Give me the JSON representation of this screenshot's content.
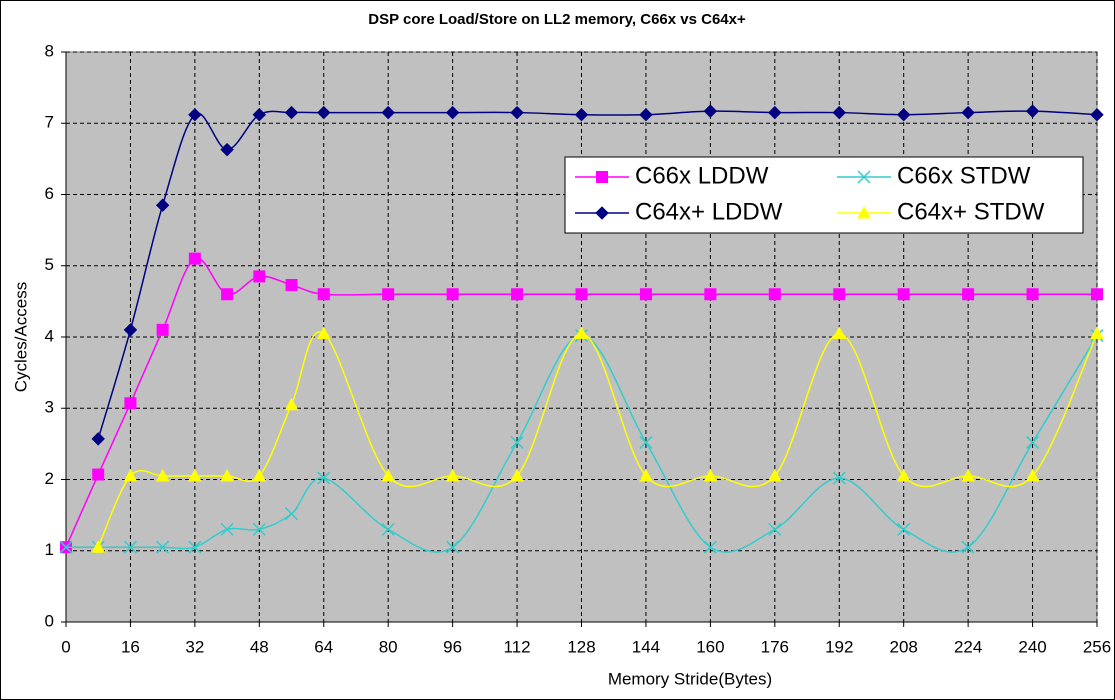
{
  "chart_data": {
    "type": "line",
    "title": "DSP core Load/Store on LL2 memory, C66x vs C64x+",
    "xlabel": "Memory Stride(Bytes)",
    "ylabel": "Cycles/Access",
    "xlim": [
      0,
      256
    ],
    "xticks": [
      0,
      16,
      32,
      48,
      64,
      80,
      96,
      112,
      128,
      144,
      160,
      176,
      192,
      208,
      224,
      240,
      256
    ],
    "ylim": [
      0,
      8
    ],
    "yticks": [
      0,
      1,
      2,
      3,
      4,
      5,
      6,
      7,
      8
    ],
    "grid": true,
    "smooth": true,
    "legend_position": "right",
    "series": [
      {
        "name": "C66x LDDW",
        "color": "#ff00ff",
        "marker": "square",
        "x": [
          0,
          8,
          16,
          24,
          32,
          40,
          48,
          56,
          64,
          80,
          96,
          112,
          128,
          144,
          160,
          176,
          192,
          208,
          224,
          240,
          256
        ],
        "values": [
          1.05,
          2.07,
          3.07,
          4.1,
          5.1,
          4.6,
          4.85,
          4.73,
          4.6,
          4.6,
          4.6,
          4.6,
          4.6,
          4.6,
          4.6,
          4.6,
          4.6,
          4.6,
          4.6,
          4.6,
          4.6
        ]
      },
      {
        "name": "C66x STDW",
        "color": "#33cccc",
        "marker": "x",
        "x": [
          0,
          8,
          16,
          24,
          32,
          40,
          48,
          56,
          64,
          80,
          96,
          112,
          128,
          144,
          160,
          176,
          192,
          208,
          224,
          240,
          256
        ],
        "values": [
          1.05,
          1.05,
          1.05,
          1.05,
          1.05,
          1.3,
          1.3,
          1.52,
          2.02,
          1.3,
          1.05,
          2.52,
          4.02,
          2.52,
          1.05,
          1.3,
          2.02,
          1.3,
          1.05,
          2.52,
          4.02
        ]
      },
      {
        "name": "C64x+ LDDW",
        "color": "#000080",
        "marker": "diamond",
        "x": [
          8,
          16,
          24,
          32,
          40,
          48,
          56,
          64,
          80,
          96,
          112,
          128,
          144,
          160,
          176,
          192,
          208,
          224,
          240,
          256
        ],
        "values": [
          2.57,
          4.1,
          5.85,
          7.12,
          6.63,
          7.12,
          7.15,
          7.15,
          7.15,
          7.15,
          7.15,
          7.12,
          7.12,
          7.17,
          7.15,
          7.15,
          7.12,
          7.15,
          7.17,
          7.12
        ]
      },
      {
        "name": "C64x+ STDW",
        "color": "#ffff00",
        "marker": "triangle",
        "x": [
          8,
          16,
          24,
          32,
          40,
          48,
          56,
          64,
          80,
          96,
          112,
          128,
          144,
          160,
          176,
          192,
          208,
          224,
          240,
          256
        ],
        "values": [
          1.05,
          2.05,
          2.05,
          2.05,
          2.05,
          2.05,
          3.05,
          4.05,
          2.05,
          2.05,
          2.05,
          4.05,
          2.05,
          2.05,
          2.05,
          4.05,
          2.05,
          2.05,
          2.05,
          4.05
        ]
      }
    ]
  }
}
